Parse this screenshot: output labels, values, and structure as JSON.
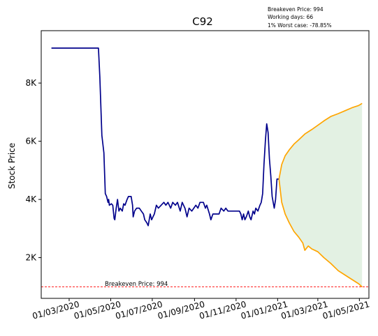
{
  "chart_data": {
    "type": "line",
    "title": "C92",
    "xlabel": "",
    "ylabel": "Stock Price",
    "info_lines": [
      "Breakeven Price: 994",
      "Working days: 66",
      "1% Worst case: -78.85%"
    ],
    "x_ticks": [
      "01/03/2020",
      "01/05/2020",
      "01/07/2020",
      "01/09/2020",
      "01/11/2020",
      "01/01/2021",
      "01/03/2021",
      "01/05/2021"
    ],
    "y_ticks": [
      "2K",
      "4K",
      "6K",
      "8K"
    ],
    "y_tick_values": [
      2000,
      4000,
      6000,
      8000
    ],
    "ylim": [
      600,
      9800
    ],
    "xlim": [
      "2020-01-20",
      "2021-05-15"
    ],
    "grid": false,
    "breakeven": {
      "value": 994,
      "label": "Breakeven Price: 994",
      "color": "#ff0000"
    },
    "series": [
      {
        "color": "#00008b",
        "points": [
          [
            "2020-02-04",
            9200
          ],
          [
            "2020-04-12",
            9200
          ],
          [
            "2020-04-13",
            9200
          ],
          [
            "2020-04-15",
            8200
          ],
          [
            "2020-04-18",
            6200
          ],
          [
            "2020-04-21",
            5600
          ],
          [
            "2020-04-23",
            4200
          ],
          [
            "2020-04-25",
            4100
          ],
          [
            "2020-04-27",
            3900
          ],
          [
            "2020-04-28",
            4000
          ],
          [
            "2020-04-29",
            3800
          ],
          [
            "2020-05-02",
            3850
          ],
          [
            "2020-05-04",
            3800
          ],
          [
            "2020-05-06",
            3350
          ],
          [
            "2020-05-07",
            3300
          ],
          [
            "2020-05-09",
            3700
          ],
          [
            "2020-05-11",
            4000
          ],
          [
            "2020-05-13",
            3600
          ],
          [
            "2020-05-15",
            3700
          ],
          [
            "2020-05-18",
            3600
          ],
          [
            "2020-05-20",
            3850
          ],
          [
            "2020-05-22",
            3800
          ],
          [
            "2020-05-25",
            4000
          ],
          [
            "2020-05-27",
            4100
          ],
          [
            "2020-05-31",
            4100
          ],
          [
            "2020-06-02",
            3800
          ],
          [
            "2020-06-03",
            3400
          ],
          [
            "2020-06-05",
            3600
          ],
          [
            "2020-06-08",
            3700
          ],
          [
            "2020-06-12",
            3700
          ],
          [
            "2020-06-15",
            3600
          ],
          [
            "2020-06-18",
            3500
          ],
          [
            "2020-06-20",
            3300
          ],
          [
            "2020-06-23",
            3200
          ],
          [
            "2020-06-25",
            3100
          ],
          [
            "2020-06-28",
            3500
          ],
          [
            "2020-06-30",
            3300
          ],
          [
            "2020-07-02",
            3400
          ],
          [
            "2020-07-04",
            3500
          ],
          [
            "2020-07-07",
            3800
          ],
          [
            "2020-07-10",
            3700
          ],
          [
            "2020-07-14",
            3800
          ],
          [
            "2020-07-18",
            3900
          ],
          [
            "2020-07-21",
            3800
          ],
          [
            "2020-07-24",
            3900
          ],
          [
            "2020-07-28",
            3700
          ],
          [
            "2020-07-31",
            3900
          ],
          [
            "2020-08-04",
            3800
          ],
          [
            "2020-08-07",
            3900
          ],
          [
            "2020-08-11",
            3600
          ],
          [
            "2020-08-14",
            3900
          ],
          [
            "2020-08-18",
            3700
          ],
          [
            "2020-08-21",
            3400
          ],
          [
            "2020-08-24",
            3700
          ],
          [
            "2020-08-28",
            3600
          ],
          [
            "2020-08-31",
            3700
          ],
          [
            "2020-09-03",
            3800
          ],
          [
            "2020-09-06",
            3700
          ],
          [
            "2020-09-09",
            3900
          ],
          [
            "2020-09-14",
            3900
          ],
          [
            "2020-09-17",
            3700
          ],
          [
            "2020-09-19",
            3800
          ],
          [
            "2020-09-23",
            3500
          ],
          [
            "2020-09-25",
            3300
          ],
          [
            "2020-09-28",
            3500
          ],
          [
            "2020-10-02",
            3500
          ],
          [
            "2020-10-07",
            3500
          ],
          [
            "2020-10-10",
            3700
          ],
          [
            "2020-10-14",
            3600
          ],
          [
            "2020-10-17",
            3700
          ],
          [
            "2020-10-20",
            3600
          ],
          [
            "2020-10-24",
            3600
          ],
          [
            "2020-10-28",
            3600
          ],
          [
            "2020-11-03",
            3600
          ],
          [
            "2020-11-06",
            3600
          ],
          [
            "2020-11-08",
            3500
          ],
          [
            "2020-11-10",
            3300
          ],
          [
            "2020-11-12",
            3500
          ],
          [
            "2020-11-14",
            3300
          ],
          [
            "2020-11-16",
            3400
          ],
          [
            "2020-11-19",
            3600
          ],
          [
            "2020-11-21",
            3400
          ],
          [
            "2020-11-23",
            3300
          ],
          [
            "2020-11-26",
            3600
          ],
          [
            "2020-11-28",
            3500
          ],
          [
            "2020-11-30",
            3700
          ],
          [
            "2020-12-03",
            3600
          ],
          [
            "2020-12-06",
            3800
          ],
          [
            "2020-12-08",
            3900
          ],
          [
            "2020-12-10",
            4200
          ],
          [
            "2020-12-12",
            5200
          ],
          [
            "2020-12-14",
            6000
          ],
          [
            "2020-12-16",
            6600
          ],
          [
            "2020-12-18",
            6300
          ],
          [
            "2020-12-20",
            5400
          ],
          [
            "2020-12-22",
            4800
          ],
          [
            "2020-12-24",
            4100
          ],
          [
            "2020-12-27",
            3700
          ],
          [
            "2020-12-29",
            4000
          ],
          [
            "2020-12-31",
            4700
          ],
          [
            "2021-01-03",
            4700
          ]
        ]
      },
      {
        "color": "#ffa500",
        "points": [
          [
            "2021-01-03",
            4700
          ],
          [
            "2021-01-07",
            5200
          ],
          [
            "2021-01-12",
            5500
          ],
          [
            "2021-01-18",
            5700
          ],
          [
            "2021-01-25",
            5900
          ],
          [
            "2021-02-01",
            6050
          ],
          [
            "2021-02-10",
            6250
          ],
          [
            "2021-02-20",
            6400
          ],
          [
            "2021-03-01",
            6550
          ],
          [
            "2021-03-10",
            6700
          ],
          [
            "2021-03-20",
            6850
          ],
          [
            "2021-03-31",
            6950
          ],
          [
            "2021-04-10",
            7050
          ],
          [
            "2021-04-20",
            7150
          ],
          [
            "2021-04-30",
            7230
          ],
          [
            "2021-05-05",
            7300
          ]
        ]
      },
      {
        "color": "#ffa500",
        "points": [
          [
            "2021-01-03",
            4700
          ],
          [
            "2021-01-07",
            3900
          ],
          [
            "2021-01-12",
            3500
          ],
          [
            "2021-01-18",
            3200
          ],
          [
            "2021-01-25",
            2900
          ],
          [
            "2021-02-01",
            2700
          ],
          [
            "2021-02-07",
            2500
          ],
          [
            "2021-02-10",
            2250
          ],
          [
            "2021-02-15",
            2400
          ],
          [
            "2021-02-20",
            2300
          ],
          [
            "2021-03-01",
            2200
          ],
          [
            "2021-03-10",
            2000
          ],
          [
            "2021-03-20",
            1800
          ],
          [
            "2021-03-31",
            1550
          ],
          [
            "2021-04-10",
            1400
          ],
          [
            "2021-04-20",
            1250
          ],
          [
            "2021-04-30",
            1100
          ],
          [
            "2021-05-05",
            994
          ]
        ]
      }
    ],
    "band": {
      "color": "#c8e3c8",
      "between_series": [
        1,
        2
      ]
    }
  }
}
